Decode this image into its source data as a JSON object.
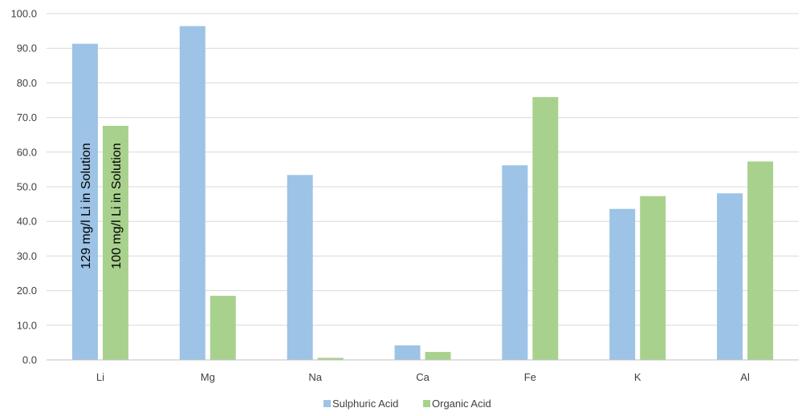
{
  "chart_data": {
    "type": "bar",
    "categories": [
      "Li",
      "Mg",
      "Na",
      "Ca",
      "Fe",
      "K",
      "Al"
    ],
    "series": [
      {
        "name": "Sulphuric Acid",
        "color": "#9DC3E6",
        "values": [
          91.3,
          96.4,
          53.4,
          4.2,
          56.2,
          43.6,
          48.1
        ]
      },
      {
        "name": "Organic Acid",
        "color": "#A9D18E",
        "values": [
          67.6,
          18.5,
          0.6,
          2.3,
          75.9,
          47.3,
          57.3
        ]
      }
    ],
    "ylim": [
      0,
      100
    ],
    "yticks": [
      "0.0",
      "10.0",
      "20.0",
      "30.0",
      "40.0",
      "50.0",
      "60.0",
      "70.0",
      "80.0",
      "90.0",
      "100.0"
    ],
    "grid": true,
    "legend_position": "bottom",
    "annotations": [
      {
        "text": "129 mg/l Li in Solution",
        "series": 0,
        "category": "Li"
      },
      {
        "text": "100 mg/l Li in Solution",
        "series": 1,
        "category": "Li"
      }
    ],
    "title": "",
    "xlabel": "",
    "ylabel": ""
  }
}
